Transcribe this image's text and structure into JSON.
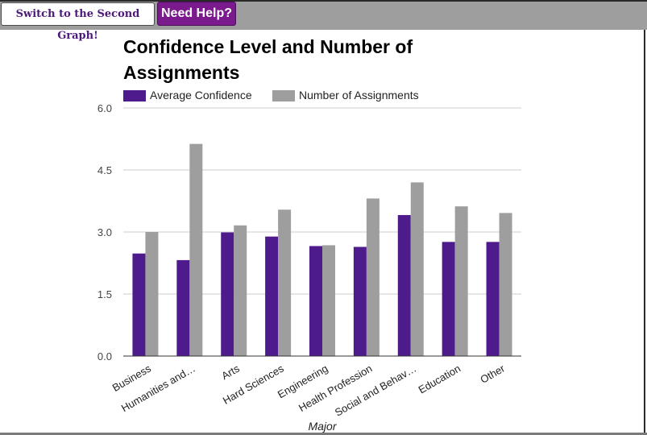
{
  "toolbar": {
    "switch_label": "Switch to the Second Graph!",
    "help_label": "Need Help?"
  },
  "chart_data": {
    "type": "bar",
    "title": "Confidence Level and Number of Assignments",
    "xlabel": "Major",
    "ylabel": "",
    "ylim": [
      0,
      6
    ],
    "yticks": [
      "0.0",
      "1.5",
      "3.0",
      "4.5",
      "6.0"
    ],
    "legend_position": "top",
    "grid": true,
    "categories": [
      "Business",
      "Humanities and…",
      "Arts",
      "Hard Sciences",
      "Engineering",
      "Health Profession",
      "Social and Behav…",
      "Education",
      "Other"
    ],
    "series": [
      {
        "name": "Average Confidence",
        "color": "#4e1b8c",
        "values": [
          2.48,
          2.32,
          2.99,
          2.89,
          2.66,
          2.64,
          3.41,
          2.76,
          2.76
        ]
      },
      {
        "name": "Number of Assignments",
        "color": "#9e9e9e",
        "values": [
          3.0,
          5.13,
          3.16,
          3.54,
          2.68,
          3.81,
          4.2,
          3.62,
          3.46
        ]
      }
    ]
  }
}
